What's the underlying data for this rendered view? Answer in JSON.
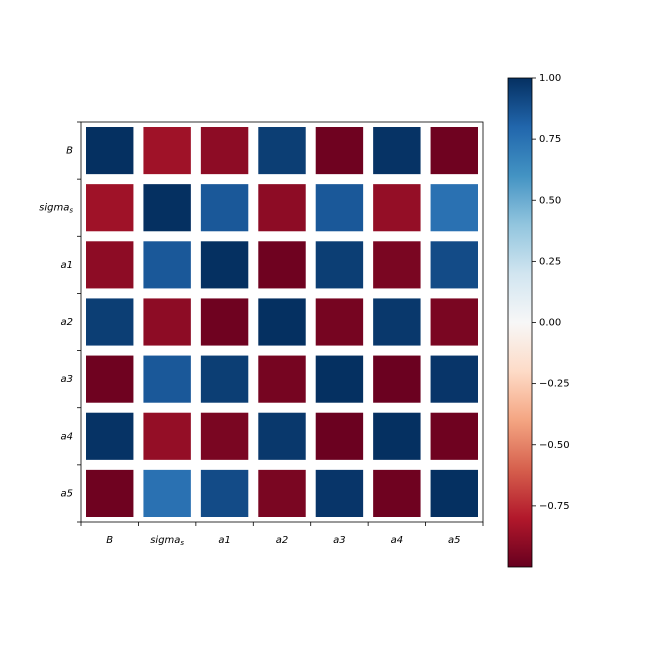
{
  "chart_data": {
    "type": "heatmap",
    "title": "",
    "xlabel": "",
    "ylabel": "",
    "labels": [
      "B",
      "sigma_s",
      "a1",
      "a2",
      "a3",
      "a4",
      "a5"
    ],
    "values": [
      [
        1.0,
        -0.85,
        -0.9,
        0.95,
        -0.98,
        0.99,
        -0.98
      ],
      [
        -0.85,
        1.0,
        0.85,
        -0.9,
        0.85,
        -0.88,
        0.75
      ],
      [
        -0.9,
        0.85,
        1.0,
        -0.98,
        0.95,
        -0.95,
        0.9
      ],
      [
        0.95,
        -0.9,
        -0.98,
        1.0,
        -0.96,
        0.97,
        -0.95
      ],
      [
        -0.98,
        0.85,
        0.95,
        -0.96,
        1.0,
        -0.99,
        0.98
      ],
      [
        0.99,
        -0.88,
        -0.95,
        0.97,
        -0.99,
        1.0,
        -0.98
      ],
      [
        -0.98,
        0.75,
        0.9,
        -0.95,
        0.98,
        -0.98,
        1.0
      ]
    ],
    "colorbar": {
      "colormap": "RdBu",
      "range": [
        -1.0,
        1.0
      ],
      "ticks": [
        1.0,
        0.75,
        0.5,
        0.25,
        0.0,
        -0.25,
        -0.5,
        -0.75
      ],
      "tick_labels": [
        "1.00",
        "0.75",
        "0.50",
        "0.25",
        "0.00",
        "−0.25",
        "−0.50",
        "−0.75"
      ]
    },
    "grid": false,
    "legend": "colorbar-right"
  }
}
